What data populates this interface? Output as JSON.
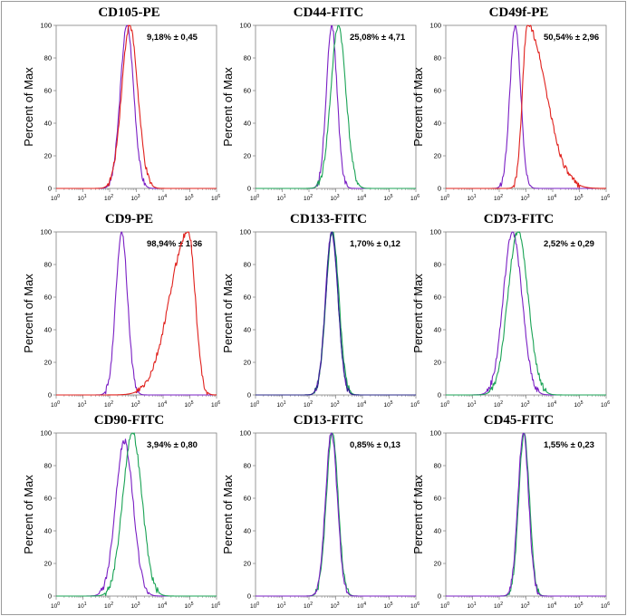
{
  "colors": {
    "isotype": "#7a1fc4",
    "pe": "#e0201c",
    "fitc": "#1aa355",
    "overlap": "#2a2a8a",
    "axis": "#808080",
    "border": "#9a9a9a"
  },
  "chart_data": [
    {
      "type": "line",
      "title": "CD105-PE",
      "stat": "9,18% ± 0,45",
      "ylabel": "Percent of Max",
      "yticks": [
        "0",
        "20",
        "40",
        "60",
        "80",
        "100"
      ],
      "ylim": [
        0,
        100
      ],
      "xticks": [
        "0",
        "1",
        "2",
        "3",
        "4",
        "5",
        "6"
      ],
      "xscale": "log",
      "xlim": [
        0,
        6
      ],
      "series": [
        {
          "color_key": "isotype",
          "mode": "gauss",
          "peaks": [
            [
              2.65,
              0.25,
              100
            ]
          ]
        },
        {
          "color_key": "pe",
          "mode": "gauss",
          "peaks": [
            [
              2.75,
              0.3,
              100
            ]
          ]
        }
      ]
    },
    {
      "type": "line",
      "title": "CD44-FITC",
      "stat": "25,08% ± 4,71",
      "ylabel": "Percent of Max",
      "yticks": [
        "0",
        "20",
        "40",
        "60",
        "80",
        "100"
      ],
      "ylim": [
        0,
        100
      ],
      "xticks": [
        "0",
        "1",
        "2",
        "3",
        "4",
        "5",
        "6"
      ],
      "xscale": "log",
      "xlim": [
        0,
        6
      ],
      "series": [
        {
          "color_key": "isotype",
          "mode": "gauss",
          "peaks": [
            [
              2.85,
              0.2,
              100
            ]
          ]
        },
        {
          "color_key": "fitc",
          "mode": "gauss",
          "peaks": [
            [
              3.1,
              0.28,
              100
            ]
          ]
        }
      ]
    },
    {
      "type": "line",
      "title": "CD49f-PE",
      "stat": "50,54% ± 2,96",
      "ylabel": "Percent of Max",
      "yticks": [
        "0",
        "20",
        "40",
        "60",
        "80",
        "100"
      ],
      "ylim": [
        0,
        100
      ],
      "xticks": [
        "0",
        "1",
        "2",
        "3",
        "4",
        "5",
        "6"
      ],
      "xscale": "log",
      "xlim": [
        0,
        6
      ],
      "series": [
        {
          "color_key": "isotype",
          "mode": "gauss",
          "peaks": [
            [
              2.6,
              0.2,
              100
            ]
          ]
        },
        {
          "color_key": "pe",
          "mode": "skew",
          "peaks": [
            [
              3.05,
              0.18,
              0.7,
              100
            ]
          ]
        }
      ]
    },
    {
      "type": "line",
      "title": "CD9-PE",
      "stat": "98,94% ± 1,36",
      "ylabel": "Percent of Max",
      "yticks": [
        "0",
        "20",
        "40",
        "60",
        "80",
        "100"
      ],
      "ylim": [
        0,
        100
      ],
      "xticks": [
        "0",
        "1",
        "2",
        "3",
        "4",
        "5",
        "6"
      ],
      "xscale": "log",
      "xlim": [
        0,
        6
      ],
      "series": [
        {
          "color_key": "isotype",
          "mode": "gauss",
          "peaks": [
            [
              2.45,
              0.22,
              100
            ]
          ]
        },
        {
          "color_key": "pe",
          "mode": "skew",
          "peaks": [
            [
              4.95,
              0.7,
              0.25,
              100
            ]
          ]
        }
      ]
    },
    {
      "type": "line",
      "title": "CD133-FITC",
      "stat": "1,70% ± 0,12",
      "ylabel": "Percent of Max",
      "yticks": [
        "0",
        "20",
        "40",
        "60",
        "80",
        "100"
      ],
      "ylim": [
        0,
        100
      ],
      "xticks": [
        "0",
        "1",
        "2",
        "3",
        "4",
        "5",
        "6"
      ],
      "xscale": "log",
      "xlim": [
        0,
        6
      ],
      "series": [
        {
          "color_key": "fitc",
          "mode": "gauss",
          "peaks": [
            [
              2.88,
              0.24,
              100
            ]
          ]
        },
        {
          "color_key": "isotype",
          "mode": "gauss",
          "peaks": [
            [
              2.85,
              0.23,
              100
            ]
          ]
        },
        {
          "color_key": "overlap",
          "mode": "gauss",
          "peaks": [
            [
              2.86,
              0.23,
              100
            ]
          ]
        }
      ]
    },
    {
      "type": "line",
      "title": "CD73-FITC",
      "stat": "2,52% ± 0,29",
      "ylabel": "Percent of Max",
      "yticks": [
        "0",
        "20",
        "40",
        "60",
        "80",
        "100"
      ],
      "ylim": [
        0,
        100
      ],
      "xticks": [
        "0",
        "1",
        "2",
        "3",
        "4",
        "5",
        "6"
      ],
      "xscale": "log",
      "xlim": [
        0,
        6
      ],
      "series": [
        {
          "color_key": "isotype",
          "mode": "gauss",
          "peaks": [
            [
              2.5,
              0.35,
              100
            ]
          ]
        },
        {
          "color_key": "fitc",
          "mode": "gauss",
          "peaks": [
            [
              2.7,
              0.38,
              100
            ]
          ]
        }
      ]
    },
    {
      "type": "line",
      "title": "CD90-FITC",
      "stat": "3,94% ± 0,80",
      "ylabel": "Percent of Max",
      "yticks": [
        "0",
        "20",
        "40",
        "60",
        "80",
        "100"
      ],
      "ylim": [
        0,
        100
      ],
      "xticks": [
        "0",
        "1",
        "2",
        "3",
        "4",
        "5",
        "6"
      ],
      "xscale": "log",
      "xlim": [
        0,
        6
      ],
      "series": [
        {
          "color_key": "isotype",
          "mode": "gauss",
          "peaks": [
            [
              2.55,
              0.33,
              95
            ]
          ]
        },
        {
          "color_key": "fitc",
          "mode": "gauss",
          "peaks": [
            [
              2.85,
              0.36,
              100
            ]
          ]
        }
      ]
    },
    {
      "type": "line",
      "title": "CD13-FITC",
      "stat": "0,85% ± 0,13",
      "ylabel": "Percent of Max",
      "yticks": [
        "0",
        "20",
        "40",
        "60",
        "80",
        "100"
      ],
      "ylim": [
        0,
        100
      ],
      "xticks": [
        "0",
        "1",
        "2",
        "3",
        "4",
        "5",
        "6"
      ],
      "xscale": "log",
      "xlim": [
        0,
        6
      ],
      "series": [
        {
          "color_key": "fitc",
          "mode": "gauss",
          "peaks": [
            [
              2.87,
              0.22,
              100
            ]
          ]
        },
        {
          "color_key": "isotype",
          "mode": "gauss",
          "peaks": [
            [
              2.84,
              0.22,
              100
            ]
          ]
        }
      ]
    },
    {
      "type": "line",
      "title": "CD45-FITC",
      "stat": "1,55% ± 0,23",
      "ylabel": "Percent of Max",
      "yticks": [
        "0",
        "20",
        "40",
        "60",
        "80",
        "100"
      ],
      "ylim": [
        0,
        100
      ],
      "xticks": [
        "0",
        "1",
        "2",
        "3",
        "4",
        "5",
        "6"
      ],
      "xscale": "log",
      "xlim": [
        0,
        6
      ],
      "series": [
        {
          "color_key": "fitc",
          "mode": "gauss",
          "peaks": [
            [
              2.93,
              0.2,
              100
            ]
          ]
        },
        {
          "color_key": "isotype",
          "mode": "gauss",
          "peaks": [
            [
              2.9,
              0.2,
              100
            ]
          ]
        }
      ]
    }
  ]
}
